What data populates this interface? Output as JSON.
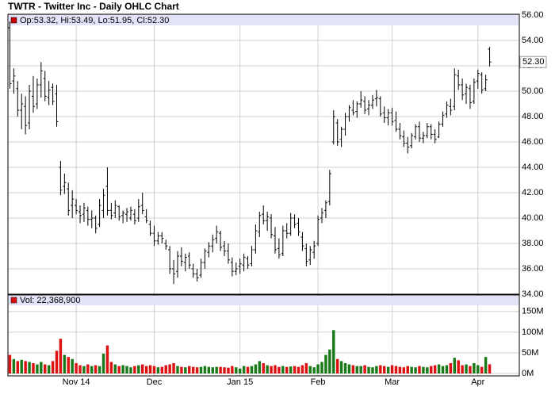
{
  "chart_data": [
    {
      "type": "ohlc",
      "title": "TWTR - Twitter Inc - Daily OHLC Chart",
      "info": "Op:53.32, Hi:53.49, Lo:51.95, Cl:52.30",
      "last_label": "52.30",
      "color": "#000000",
      "info_color": "#cc0000",
      "grid": true,
      "categories": [
        null,
        null,
        null,
        null,
        null,
        null,
        null,
        null,
        null,
        null,
        null,
        null,
        null,
        null,
        null,
        null,
        null,
        "Nov 14",
        null,
        null,
        null,
        null,
        null,
        null,
        null,
        null,
        null,
        null,
        null,
        null,
        null,
        null,
        null,
        null,
        null,
        null,
        null,
        "Dec",
        null,
        null,
        null,
        null,
        null,
        null,
        null,
        null,
        null,
        null,
        null,
        null,
        null,
        null,
        null,
        null,
        null,
        null,
        null,
        null,
        null,
        "Jan 15",
        null,
        null,
        null,
        null,
        null,
        null,
        null,
        null,
        null,
        null,
        null,
        null,
        null,
        null,
        null,
        null,
        null,
        null,
        null,
        "Feb",
        null,
        null,
        null,
        null,
        null,
        null,
        null,
        null,
        null,
        null,
        null,
        null,
        null,
        null,
        null,
        null,
        null,
        null,
        "Mar",
        null,
        null,
        null,
        null,
        null,
        null,
        null,
        null,
        null,
        null,
        null,
        null,
        null,
        null,
        null,
        null,
        null,
        null,
        null,
        null,
        null,
        "Apr",
        null,
        null,
        null
      ],
      "open": [
        55.0,
        50.8,
        50.2,
        48.5,
        48.8,
        47.5,
        49.6,
        49.0,
        50.5,
        51.0,
        49.5,
        50.3,
        49.8,
        44.0,
        42.5,
        42.3,
        41.0,
        41.0,
        40.5,
        40.3,
        40.6,
        39.9,
        40.0,
        39.5,
        40.6,
        42.5,
        40.6,
        40.4,
        40.9,
        40.2,
        40.3,
        40.0,
        40.3,
        40.0,
        41.0,
        40.1,
        39.5,
        38.8,
        38.2,
        38.6,
        38.0,
        37.5,
        36.0,
        35.8,
        37.0,
        36.5,
        37.0,
        36.0,
        35.6,
        35.5,
        36.5,
        37.3,
        37.8,
        38.4,
        38.8,
        37.8,
        37.4,
        36.5,
        35.8,
        36.2,
        36.3,
        36.8,
        36.4,
        37.5,
        38.9,
        40.3,
        39.8,
        40.0,
        38.6,
        37.6,
        37.2,
        39.0,
        38.8,
        40.0,
        39.6,
        38.5,
        37.6,
        36.7,
        37.3,
        38.0,
        40.0,
        40.6,
        41.3,
        46.0,
        47.5,
        46.2,
        47.0,
        48.0,
        48.5,
        48.4,
        49.0,
        49.2,
        48.6,
        48.9,
        49.4,
        49.4,
        48.3,
        47.9,
        48.3,
        47.7,
        47.0,
        46.4,
        45.9,
        45.7,
        46.4,
        47.2,
        46.3,
        46.5,
        47.2,
        46.6,
        46.4,
        47.4,
        48.2,
        48.8,
        48.8,
        51.2,
        50.5,
        49.8,
        50.2,
        49.2,
        50.8,
        51.3,
        50.2,
        53.32
      ],
      "high": [
        55.5,
        51.8,
        50.8,
        49.8,
        49.6,
        50.5,
        51.2,
        51.0,
        52.3,
        51.6,
        50.8,
        50.6,
        50.5,
        44.5,
        43.5,
        42.8,
        42.2,
        41.5,
        41.0,
        41.2,
        40.9,
        40.6,
        40.2,
        41.5,
        42.3,
        44.0,
        41.2,
        41.4,
        41.0,
        40.6,
        40.8,
        40.9,
        40.7,
        41.5,
        42.0,
        40.7,
        39.8,
        39.4,
        38.9,
        38.9,
        38.3,
        37.8,
        36.7,
        37.4,
        37.7,
        37.2,
        37.3,
        36.4,
        36.0,
        36.8,
        37.6,
        38.1,
        38.7,
        39.4,
        39.0,
        38.2,
        38.0,
        36.9,
        36.5,
        36.8,
        37.2,
        37.0,
        37.8,
        39.5,
        40.5,
        41.0,
        40.5,
        40.3,
        39.3,
        38.4,
        39.4,
        39.6,
        40.4,
        40.3,
        40.0,
        38.9,
        38.0,
        37.8,
        38.2,
        40.2,
        40.8,
        41.4,
        43.8,
        48.5,
        47.8,
        47.2,
        48.3,
        48.9,
        49.3,
        49.2,
        50.0,
        49.6,
        49.3,
        49.7,
        50.1,
        49.6,
        48.8,
        48.6,
        48.7,
        48.4,
        47.5,
        46.9,
        46.4,
        46.7,
        47.4,
        47.6,
        46.8,
        47.5,
        47.4,
        47.0,
        47.6,
        48.4,
        49.2,
        49.4,
        51.8,
        51.7,
        51.0,
        50.6,
        50.5,
        51.0,
        51.7,
        51.5,
        51.3,
        53.49
      ],
      "low": [
        50.2,
        49.8,
        48.0,
        47.0,
        46.6,
        47.0,
        48.3,
        48.6,
        49.5,
        49.2,
        48.9,
        48.9,
        47.2,
        41.8,
        41.9,
        40.2,
        40.0,
        40.3,
        39.6,
        39.7,
        39.4,
        39.2,
        38.8,
        39.3,
        40.0,
        40.2,
        39.9,
        40.0,
        39.8,
        39.6,
        39.7,
        39.8,
        39.5,
        39.7,
        40.3,
        39.6,
        38.6,
        37.8,
        37.9,
        38.0,
        37.5,
        35.6,
        34.8,
        35.3,
        36.2,
        35.8,
        36.0,
        35.3,
        35.0,
        35.3,
        36.0,
        36.9,
        37.3,
        38.0,
        37.4,
        37.0,
        36.4,
        35.4,
        35.5,
        35.6,
        35.8,
        36.0,
        36.2,
        37.2,
        38.5,
        39.5,
        39.0,
        38.4,
        37.2,
        36.8,
        37.0,
        38.4,
        38.6,
        39.2,
        38.6,
        37.4,
        36.2,
        36.3,
        36.8,
        37.8,
        39.6,
        40.0,
        41.0,
        45.8,
        45.7,
        45.6,
        46.5,
        47.6,
        48.1,
        47.9,
        48.7,
        48.2,
        48.1,
        48.6,
        48.8,
        48.0,
        47.5,
        47.3,
        47.3,
        46.8,
        46.2,
        45.6,
        45.1,
        45.5,
        46.2,
        46.0,
        45.9,
        46.3,
        46.2,
        45.9,
        46.3,
        47.2,
        47.9,
        48.1,
        48.5,
        50.1,
        49.3,
        49.0,
        48.6,
        49.0,
        50.2,
        49.8,
        50.0,
        51.95
      ],
      "close": [
        50.6,
        51.2,
        48.5,
        49.0,
        47.3,
        50.0,
        48.8,
        50.5,
        51.6,
        49.6,
        50.1,
        49.2,
        47.6,
        42.2,
        42.8,
        40.6,
        41.5,
        40.6,
        40.2,
        40.8,
        39.9,
        40.0,
        39.2,
        41.0,
        41.8,
        40.6,
        40.2,
        41.0,
        40.1,
        40.4,
        40.5,
        40.6,
        39.8,
        40.9,
        40.6,
        39.8,
        38.8,
        38.2,
        38.6,
        38.4,
        37.8,
        36.0,
        35.6,
        37.0,
        36.6,
        36.9,
        36.3,
        35.6,
        35.3,
        36.5,
        37.4,
        37.8,
        38.3,
        38.9,
        37.7,
        37.4,
        36.7,
        35.8,
        36.0,
        36.4,
        36.9,
        36.3,
        37.5,
        39.0,
        40.2,
        39.8,
        40.1,
        38.7,
        37.5,
        37.1,
        39.0,
        38.8,
        40.0,
        39.5,
        38.9,
        37.8,
        36.6,
        37.5,
        37.8,
        39.9,
        40.4,
        41.2,
        43.5,
        48.0,
        46.0,
        47.0,
        48.0,
        48.7,
        48.3,
        49.0,
        49.3,
        48.5,
        48.9,
        49.3,
        49.5,
        48.2,
        47.9,
        48.3,
        47.6,
        47.0,
        46.5,
        45.9,
        45.6,
        46.5,
        47.2,
        46.3,
        46.5,
        47.2,
        46.6,
        46.2,
        47.4,
        48.1,
        48.9,
        48.5,
        51.3,
        50.5,
        49.7,
        50.3,
        49.1,
        50.7,
        51.4,
        50.1,
        50.9,
        52.3
      ],
      "ylim": [
        34,
        56
      ],
      "yticks": [
        {
          "value": 34,
          "label": "34.00"
        },
        {
          "value": 36,
          "label": "36.00"
        },
        {
          "value": 38,
          "label": "38.00"
        },
        {
          "value": 40,
          "label": "40.00"
        },
        {
          "value": 42,
          "label": "42.00"
        },
        {
          "value": 44,
          "label": "44.00"
        },
        {
          "value": 46,
          "label": "46.00"
        },
        {
          "value": 48,
          "label": "48.00"
        },
        {
          "value": 50,
          "label": "50.00"
        },
        {
          "value": 52,
          "label": "52.00"
        },
        {
          "value": 54,
          "label": "54.00"
        },
        {
          "value": 56,
          "label": "56.00"
        }
      ]
    },
    {
      "type": "bar",
      "label": "Vol: 22,368,900",
      "up_color": "#1a7a1a",
      "down_color": "#dd1111",
      "grid": true,
      "values": [
        45,
        35,
        30,
        33,
        30,
        28,
        25,
        22,
        28,
        22,
        20,
        30,
        55,
        84,
        45,
        40,
        35,
        25,
        20,
        18,
        22,
        18,
        20,
        18,
        48,
        68,
        28,
        22,
        18,
        20,
        18,
        15,
        18,
        20,
        22,
        18,
        20,
        18,
        15,
        16,
        20,
        22,
        25,
        18,
        16,
        15,
        18,
        16,
        15,
        16,
        18,
        16,
        15,
        16,
        16,
        15,
        14,
        18,
        15,
        12,
        18,
        16,
        18,
        22,
        30,
        25,
        20,
        18,
        20,
        16,
        18,
        16,
        17,
        18,
        16,
        20,
        25,
        18,
        15,
        22,
        28,
        45,
        58,
        105,
        35,
        30,
        25,
        22,
        20,
        18,
        18,
        20,
        16,
        15,
        18,
        20,
        18,
        16,
        20,
        18,
        16,
        15,
        18,
        16,
        15,
        18,
        16,
        15,
        18,
        20,
        22,
        18,
        20,
        25,
        38,
        32,
        20,
        22,
        18,
        25,
        20,
        16,
        40,
        22.3689
      ],
      "ylim": [
        0,
        190
      ],
      "yticks": [
        {
          "value": 0,
          "label": "0M"
        },
        {
          "value": 50,
          "label": "50M"
        },
        {
          "value": 100,
          "label": "100M"
        },
        {
          "value": 150,
          "label": "150M"
        }
      ]
    }
  ]
}
